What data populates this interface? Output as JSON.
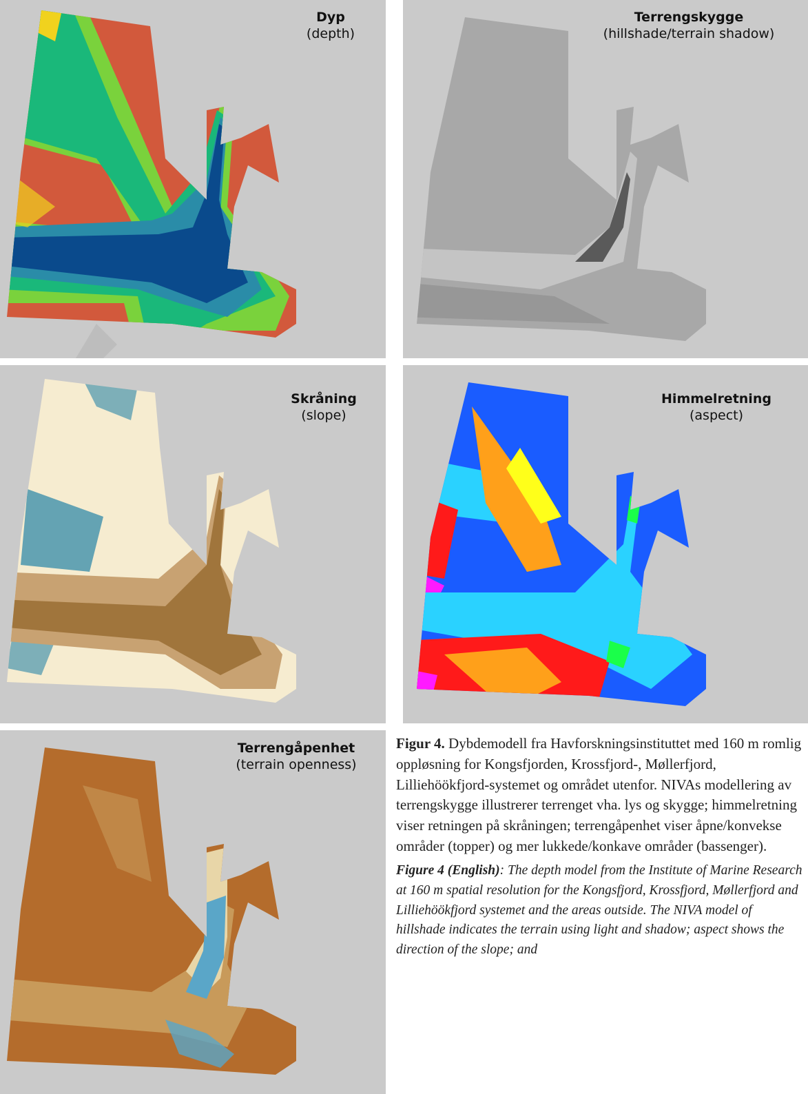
{
  "panels": [
    {
      "id": "depth",
      "title": "Dyp",
      "subtitle": "(depth)",
      "colors": [
        "#d2593c",
        "#f0d21e",
        "#7ad23c",
        "#1ab87a",
        "#2a8ca8",
        "#0a4a8c"
      ]
    },
    {
      "id": "hillshade",
      "title": "Terrengskygge",
      "subtitle": "(hillshade/terrain shadow)",
      "colors": [
        "#a8a8a8",
        "#8c8c8c",
        "#c4c4c4",
        "#5a5a5a"
      ]
    },
    {
      "id": "slope",
      "title": "Skråning",
      "subtitle": "(slope)",
      "colors": [
        "#f6ecd0",
        "#c8a272",
        "#4a96ae",
        "#a0753c"
      ]
    },
    {
      "id": "aspect",
      "title": "Himmelretning",
      "subtitle": "(aspect)",
      "colors": [
        "#1a5cff",
        "#2ad2ff",
        "#ffa01a",
        "#ff1a1a",
        "#ff1aff",
        "#ffff1a",
        "#1aff4a"
      ]
    },
    {
      "id": "openness",
      "title": "Terrengåpenhet",
      "subtitle": "(terrain openness)",
      "colors": [
        "#b46c2c",
        "#c89a5a",
        "#e8d6a8",
        "#5aa6c8"
      ]
    }
  ],
  "land_color": "#cacaca",
  "caption": {
    "no_label": "Figur 4.",
    "no_text": " Dybdemodell fra Havforskningsinstituttet med 160 m romlig oppløsning for Kongsfjorden, Krossfjord-, Møllerfjord, Lilliehöökfjord-systemet og området utenfor. NIVAs modellering av terrengskygge illustrerer terrenget vha. lys og skygge; himmelretning viser retningen på skråningen; terrengåpenhet viser åpne/konvekse områder (topper) og mer lukkede/konkave områder (bassenger).",
    "en_label": "Figure 4 (English)",
    "en_text": ": The depth model from the Institute of Marine Research at 160 m spatial resolution for the Kongsfjord, Krossfjord, Møllerfjord and Lilliehöökfjord systemet and the areas outside. The NIVA model of hillshade indicates the terrain using light and shadow; aspect shows the direction of the slope; and"
  }
}
